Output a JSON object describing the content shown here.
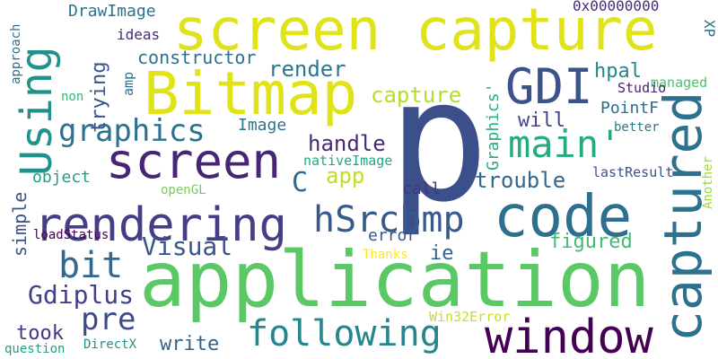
{
  "words": [
    {
      "text": "p",
      "color": "#3b4f8a"
    },
    {
      "text": "screen capture",
      "color": "#dfe318"
    },
    {
      "text": "application",
      "color": "#5ac864"
    },
    {
      "text": "Bitmap",
      "color": "#dfe318"
    },
    {
      "text": "code",
      "color": "#2e6e8e"
    },
    {
      "text": "captured",
      "color": "#2c718e"
    },
    {
      "text": "rendering",
      "color": "#433e85"
    },
    {
      "text": "window",
      "color": "#440154"
    },
    {
      "text": "screen",
      "color": "#482475"
    },
    {
      "text": "GDI",
      "color": "#3b528b"
    },
    {
      "text": "main'",
      "color": "#25ab82"
    },
    {
      "text": "Using",
      "color": "#21918c"
    },
    {
      "text": "hSrcbmp",
      "color": "#38598c"
    },
    {
      "text": "following",
      "color": "#24878e"
    },
    {
      "text": "graphics",
      "color": "#2c728e"
    },
    {
      "text": "bit",
      "color": "#31688e"
    },
    {
      "text": "pre",
      "color": "#3e4a89"
    },
    {
      "text": "Visual",
      "color": "#39558c"
    },
    {
      "text": "Gdiplus",
      "color": "#424086"
    },
    {
      "text": "capture",
      "color": "#b5de2b"
    },
    {
      "text": "render",
      "color": "#2a788e"
    },
    {
      "text": "constructor",
      "color": "#2d708e"
    },
    {
      "text": "trouble",
      "color": "#31688e"
    },
    {
      "text": "handle",
      "color": "#482878"
    },
    {
      "text": "figured",
      "color": "#3fbc73"
    },
    {
      "text": "took",
      "color": "#453781"
    },
    {
      "text": "write",
      "color": "#33638d"
    },
    {
      "text": "hpal",
      "color": "#23888e"
    },
    {
      "text": "will",
      "color": "#414487"
    },
    {
      "text": "PointF",
      "color": "#2d708e"
    },
    {
      "text": "DrawImage",
      "color": "#2c728e"
    },
    {
      "text": "trying",
      "color": "#3b528b"
    },
    {
      "text": "C",
      "color": "#31688e"
    },
    {
      "text": "app",
      "color": "#bddf26"
    },
    {
      "text": "Graphics'",
      "color": "#29af7f"
    },
    {
      "text": "simple",
      "color": "#3b528b"
    },
    {
      "text": "object",
      "color": "#1f9e89"
    },
    {
      "text": "Image",
      "color": "#2a768e"
    },
    {
      "text": "call",
      "color": "#46327e"
    },
    {
      "text": "error",
      "color": "#38598c"
    },
    {
      "text": "ie",
      "color": "#33638d"
    },
    {
      "text": "ideas",
      "color": "#482878"
    },
    {
      "text": "0x00000000",
      "color": "#472c7a"
    },
    {
      "text": "XP",
      "color": "#2c728e"
    },
    {
      "text": "managed",
      "color": "#4ac16d"
    },
    {
      "text": "Studio",
      "color": "#482173"
    },
    {
      "text": "better",
      "color": "#2a788e"
    },
    {
      "text": "Another",
      "color": "#9dd93b"
    },
    {
      "text": "lastResult",
      "color": "#3b528b"
    },
    {
      "text": "nativeImage",
      "color": "#22a884"
    },
    {
      "text": "openGL",
      "color": "#73d056"
    },
    {
      "text": "loadStatus",
      "color": "#440154"
    },
    {
      "text": "Thanks",
      "color": "#fde725"
    },
    {
      "text": "Win32Error",
      "color": "#c2df23"
    },
    {
      "text": "question",
      "color": "#1f9e89"
    },
    {
      "text": "DirectX",
      "color": "#21918c"
    },
    {
      "text": "approach",
      "color": "#2d708e"
    },
    {
      "text": "non",
      "color": "#35b779"
    },
    {
      "text": "amp",
      "color": "#2e6e8e"
    }
  ]
}
